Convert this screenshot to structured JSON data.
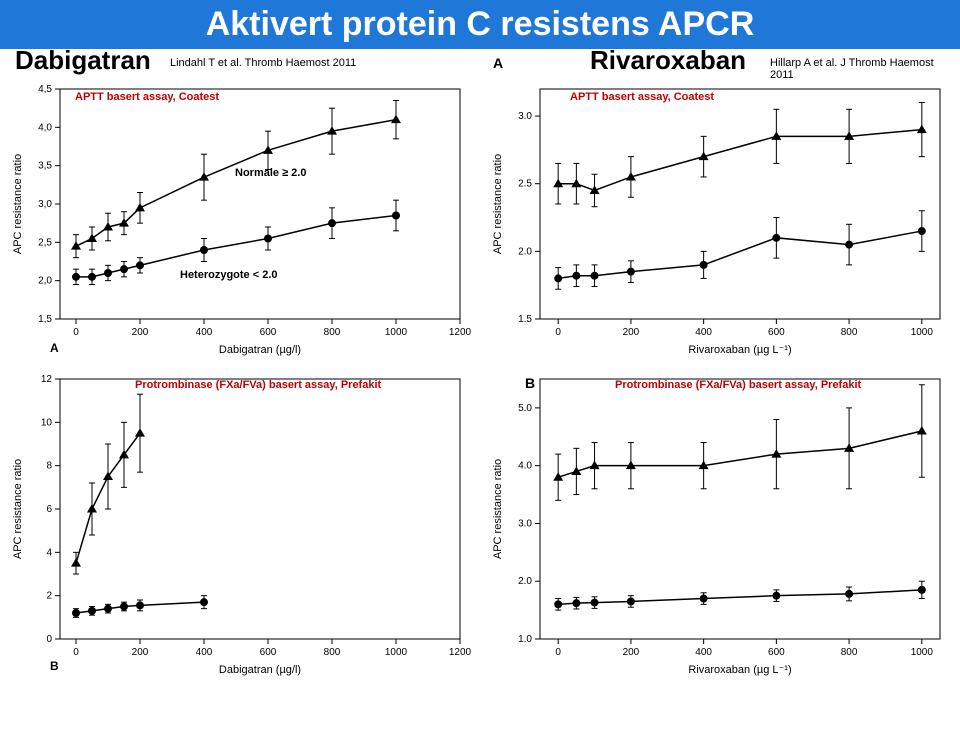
{
  "title": "Aktivert protein C resistens APCR",
  "left": {
    "drug": "Dabigatran",
    "citation": "Lindahl T et al. Thromb Haemost 2011",
    "assayLabel": "APTT basert  assay, Coatest",
    "normaleLabel": "Normale ≥ 2.0",
    "heteroLabel": "Heterozygote < 2.0",
    "protrombLabel": "Protrombinase (FXa/FVa) basert assay,  Prefakit",
    "panelLetterA": "A",
    "panelLetterB": "B",
    "chartA": {
      "xLabel": "Dabigatran (µg/l)",
      "yLabel": "APC resistance ratio",
      "xlim": [
        -50,
        1200
      ],
      "ylim": [
        1.5,
        4.5
      ],
      "xticks": [
        0,
        200,
        400,
        600,
        800,
        1000,
        1200
      ],
      "yticks": [
        1.5,
        2.0,
        2.5,
        3.0,
        3.5,
        4.0,
        4.5
      ],
      "ytickLabels": [
        "1,5",
        "2,0",
        "2,5",
        "3,0",
        "3,5",
        "4,0",
        "4,5"
      ],
      "series": [
        {
          "marker": "triangle",
          "data": [
            [
              0,
              2.45,
              0.15
            ],
            [
              50,
              2.55,
              0.15
            ],
            [
              100,
              2.7,
              0.18
            ],
            [
              150,
              2.75,
              0.15
            ],
            [
              200,
              2.95,
              0.2
            ],
            [
              400,
              3.35,
              0.3
            ],
            [
              600,
              3.7,
              0.25
            ],
            [
              800,
              3.95,
              0.3
            ],
            [
              1000,
              4.1,
              0.25
            ]
          ]
        },
        {
          "marker": "circle",
          "data": [
            [
              0,
              2.05,
              0.1
            ],
            [
              50,
              2.05,
              0.1
            ],
            [
              100,
              2.1,
              0.1
            ],
            [
              150,
              2.15,
              0.1
            ],
            [
              200,
              2.2,
              0.1
            ],
            [
              400,
              2.4,
              0.15
            ],
            [
              600,
              2.55,
              0.15
            ],
            [
              800,
              2.75,
              0.2
            ],
            [
              1000,
              2.85,
              0.2
            ]
          ]
        }
      ]
    },
    "chartB": {
      "xLabel": "Dabigatran (µg/l)",
      "yLabel": "APC resistance ratio",
      "xlim": [
        -50,
        1200
      ],
      "ylim": [
        0,
        12
      ],
      "xticks": [
        0,
        200,
        400,
        600,
        800,
        1000,
        1200
      ],
      "yticks": [
        0,
        2,
        4,
        6,
        8,
        10,
        12
      ],
      "ytickLabels": [
        "0",
        "2",
        "4",
        "6",
        "8",
        "10",
        "12"
      ],
      "series": [
        {
          "marker": "triangle",
          "data": [
            [
              0,
              3.5,
              0.5
            ],
            [
              50,
              6.0,
              1.2
            ],
            [
              100,
              7.5,
              1.5
            ],
            [
              150,
              8.5,
              1.5
            ],
            [
              200,
              9.5,
              1.8
            ]
          ]
        },
        {
          "marker": "circle",
          "data": [
            [
              0,
              1.2,
              0.2
            ],
            [
              50,
              1.3,
              0.2
            ],
            [
              100,
              1.4,
              0.2
            ],
            [
              150,
              1.5,
              0.2
            ],
            [
              200,
              1.55,
              0.25
            ],
            [
              400,
              1.7,
              0.3
            ]
          ]
        }
      ]
    }
  },
  "right": {
    "drug": "Rivaroxaban",
    "citation": "Hillarp A et al. J Thromb Haemost 2011",
    "assayLabel": "APTT basert  assay, Coatest",
    "protrombLabel": "Protrombinase (FXa/FVa) basert assay,  Prefakit",
    "panelLetterA": "A",
    "panelLetterB": "B",
    "chartA": {
      "xLabel": "Rivaroxaban (µg L⁻¹)",
      "yLabel": "APC resistance ratio",
      "xlim": [
        -50,
        1050
      ],
      "ylim": [
        1.5,
        3.2
      ],
      "xticks": [
        0,
        200,
        400,
        600,
        800,
        1000
      ],
      "yticks": [
        1.5,
        2.0,
        2.5,
        3.0
      ],
      "ytickLabels": [
        "1.5",
        "2.0",
        "2.5",
        "3.0"
      ],
      "series": [
        {
          "marker": "triangle",
          "data": [
            [
              0,
              2.5,
              0.15
            ],
            [
              50,
              2.5,
              0.15
            ],
            [
              100,
              2.45,
              0.12
            ],
            [
              200,
              2.55,
              0.15
            ],
            [
              400,
              2.7,
              0.15
            ],
            [
              600,
              2.85,
              0.2
            ],
            [
              800,
              2.85,
              0.2
            ],
            [
              1000,
              2.9,
              0.2
            ]
          ]
        },
        {
          "marker": "circle",
          "data": [
            [
              0,
              1.8,
              0.08
            ],
            [
              50,
              1.82,
              0.08
            ],
            [
              100,
              1.82,
              0.08
            ],
            [
              200,
              1.85,
              0.08
            ],
            [
              400,
              1.9,
              0.1
            ],
            [
              600,
              2.1,
              0.15
            ],
            [
              800,
              2.05,
              0.15
            ],
            [
              1000,
              2.15,
              0.15
            ]
          ]
        }
      ]
    },
    "chartB": {
      "xLabel": "Rivaroxaban (µg L⁻¹)",
      "yLabel": "APC resistance ratio",
      "xlim": [
        -50,
        1050
      ],
      "ylim": [
        1.0,
        5.5
      ],
      "xticks": [
        0,
        200,
        400,
        600,
        800,
        1000
      ],
      "yticks": [
        1.0,
        2.0,
        3.0,
        4.0,
        5.0
      ],
      "ytickLabels": [
        "1.0",
        "2.0",
        "3.0",
        "4.0",
        "5.0"
      ],
      "series": [
        {
          "marker": "triangle",
          "data": [
            [
              0,
              3.8,
              0.4
            ],
            [
              50,
              3.9,
              0.4
            ],
            [
              100,
              4.0,
              0.4
            ],
            [
              200,
              4.0,
              0.4
            ],
            [
              400,
              4.0,
              0.4
            ],
            [
              600,
              4.2,
              0.6
            ],
            [
              800,
              4.3,
              0.7
            ],
            [
              1000,
              4.6,
              0.8
            ]
          ]
        },
        {
          "marker": "circle",
          "data": [
            [
              0,
              1.6,
              0.1
            ],
            [
              50,
              1.62,
              0.1
            ],
            [
              100,
              1.63,
              0.1
            ],
            [
              200,
              1.65,
              0.1
            ],
            [
              400,
              1.7,
              0.1
            ],
            [
              600,
              1.75,
              0.1
            ],
            [
              800,
              1.78,
              0.12
            ],
            [
              1000,
              1.85,
              0.15
            ]
          ]
        }
      ]
    }
  },
  "colors": {
    "titleBg": "#1f77d8",
    "titleText": "#ffffff",
    "redLabel": "#c00000",
    "line": "#000000",
    "axis": "#000000"
  }
}
